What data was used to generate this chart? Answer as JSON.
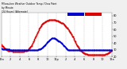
{
  "background_color": "#f0f0f0",
  "plot_bg_color": "#ffffff",
  "grid_color": "#aaaaaa",
  "temp_color": "#dd0000",
  "dew_color": "#0000cc",
  "tick_color": "#000000",
  "title_color": "#000000",
  "ylim": [
    20,
    85
  ],
  "xlim": [
    0,
    1440
  ],
  "yticks": [
    20,
    30,
    40,
    50,
    60,
    70,
    80
  ],
  "temp_data": [
    38,
    37,
    36,
    36,
    35,
    35,
    34,
    34,
    33,
    33,
    33,
    32,
    32,
    32,
    31,
    31,
    31,
    30,
    30,
    30,
    30,
    29,
    29,
    29,
    29,
    29,
    29,
    28,
    28,
    28,
    28,
    28,
    28,
    28,
    28,
    28,
    27,
    27,
    27,
    27,
    27,
    27,
    27,
    27,
    27,
    27,
    27,
    27,
    27,
    27,
    27,
    27,
    27,
    27,
    27,
    27,
    27,
    27,
    27,
    27,
    27,
    27,
    27,
    27,
    27,
    27,
    27,
    27,
    27,
    27,
    27,
    27,
    27,
    27,
    28,
    28,
    28,
    28,
    28,
    28,
    28,
    29,
    29,
    29,
    29,
    30,
    30,
    30,
    31,
    31,
    32,
    32,
    33,
    33,
    34,
    34,
    35,
    36,
    36,
    37,
    38,
    39,
    40,
    41,
    42,
    43,
    44,
    45,
    46,
    47,
    48,
    49,
    50,
    51,
    52,
    53,
    54,
    55,
    56,
    57,
    58,
    59,
    60,
    61,
    62,
    63,
    63,
    64,
    65,
    65,
    66,
    67,
    67,
    68,
    68,
    69,
    69,
    70,
    70,
    70,
    71,
    71,
    71,
    72,
    72,
    72,
    72,
    73,
    73,
    73,
    73,
    73,
    73,
    73,
    74,
    74,
    74,
    74,
    74,
    74,
    74,
    74,
    74,
    74,
    74,
    74,
    74,
    74,
    74,
    74,
    74,
    74,
    74,
    74,
    74,
    74,
    74,
    73,
    73,
    73,
    73,
    73,
    73,
    73,
    73,
    72,
    72,
    72,
    72,
    72,
    71,
    71,
    71,
    71,
    70,
    70,
    70,
    70,
    69,
    69,
    69,
    68,
    68,
    68,
    67,
    67,
    66,
    66,
    65,
    65,
    64,
    64,
    63,
    63,
    62,
    62,
    61,
    60,
    60,
    59,
    58,
    58,
    57,
    57,
    56,
    55,
    54,
    53,
    53,
    52,
    51,
    50,
    50,
    49,
    48,
    47,
    46,
    45,
    44,
    43,
    42,
    41,
    40,
    39,
    38,
    37,
    37,
    36,
    35,
    34,
    34,
    33,
    32,
    32,
    31,
    30,
    30,
    29,
    29,
    28,
    28,
    27,
    27,
    27,
    26,
    26,
    26,
    25,
    25,
    25,
    25,
    25,
    24,
    24,
    24,
    24,
    24,
    24,
    24,
    24,
    23,
    23,
    23,
    23,
    23,
    23,
    23,
    23,
    23,
    23,
    23,
    23,
    23,
    23,
    23,
    23,
    23,
    23,
    23,
    23,
    23,
    23,
    23,
    23,
    23,
    23,
    23,
    23,
    23,
    23,
    23,
    23,
    23,
    23,
    23,
    23,
    23,
    23,
    23,
    23,
    23,
    23,
    23,
    23,
    23,
    23,
    23,
    23,
    23,
    23,
    23,
    23,
    23,
    23,
    23,
    23,
    23,
    23,
    24,
    24,
    24,
    24,
    24,
    24,
    24,
    25,
    25,
    25,
    25,
    26,
    26,
    26,
    26,
    27,
    27,
    27,
    28,
    28,
    28,
    29
  ],
  "dew_data": [
    32,
    32,
    32,
    31,
    31,
    31,
    31,
    31,
    31,
    31,
    31,
    31,
    31,
    31,
    31,
    31,
    31,
    31,
    31,
    31,
    31,
    31,
    31,
    31,
    31,
    31,
    31,
    30,
    30,
    30,
    30,
    30,
    30,
    30,
    30,
    30,
    30,
    30,
    30,
    30,
    30,
    30,
    30,
    30,
    30,
    30,
    30,
    30,
    30,
    30,
    30,
    30,
    30,
    30,
    30,
    30,
    30,
    30,
    30,
    30,
    30,
    30,
    30,
    30,
    30,
    30,
    30,
    30,
    30,
    30,
    30,
    30,
    30,
    30,
    30,
    30,
    30,
    30,
    30,
    30,
    30,
    30,
    30,
    30,
    30,
    30,
    30,
    30,
    30,
    30,
    30,
    30,
    30,
    30,
    30,
    30,
    30,
    30,
    30,
    30,
    30,
    30,
    30,
    30,
    30,
    30,
    30,
    30,
    30,
    30,
    30,
    30,
    30,
    30,
    30,
    30,
    30,
    30,
    30,
    30,
    31,
    31,
    31,
    31,
    31,
    31,
    31,
    31,
    32,
    32,
    32,
    32,
    33,
    33,
    33,
    34,
    34,
    35,
    35,
    36,
    36,
    37,
    37,
    38,
    38,
    39,
    39,
    40,
    40,
    41,
    41,
    42,
    42,
    43,
    43,
    44,
    44,
    45,
    45,
    45,
    46,
    46,
    46,
    47,
    47,
    47,
    47,
    47,
    47,
    47,
    47,
    47,
    47,
    47,
    47,
    46,
    46,
    46,
    46,
    45,
    45,
    45,
    44,
    44,
    44,
    43,
    43,
    43,
    42,
    42,
    42,
    41,
    41,
    41,
    40,
    40,
    40,
    39,
    39,
    38,
    38,
    37,
    37,
    36,
    36,
    35,
    35,
    34,
    34,
    33,
    33,
    32,
    32,
    31,
    31,
    31,
    30,
    30,
    30,
    30,
    30,
    30,
    30,
    30,
    30,
    30,
    30,
    30,
    30,
    30,
    30,
    30,
    30,
    30,
    30,
    30,
    30,
    30,
    30,
    30,
    30,
    30,
    30,
    30,
    30,
    30,
    30,
    30,
    30,
    30,
    30,
    30,
    30,
    30,
    30,
    30,
    30,
    30,
    30,
    30,
    30,
    30,
    30,
    30,
    30,
    30,
    30,
    30,
    30,
    30,
    30,
    30,
    30,
    30,
    30,
    30,
    30,
    30,
    30,
    30,
    30,
    30,
    30,
    30,
    30,
    30,
    30,
    30,
    30,
    30,
    30,
    30,
    30,
    30,
    30,
    30,
    30,
    30,
    30,
    30,
    30,
    30,
    30,
    30,
    30,
    30,
    30,
    30,
    30,
    30,
    30,
    30,
    30,
    30,
    30,
    30,
    30,
    30,
    30,
    30,
    30,
    30,
    30,
    30,
    30,
    30,
    30,
    30,
    30,
    30,
    30,
    30,
    30,
    30,
    30,
    30,
    30,
    30,
    30,
    30,
    30,
    30,
    30,
    30,
    30,
    30,
    30,
    30,
    30,
    30,
    30,
    30,
    30,
    30,
    30,
    30,
    30,
    30,
    30,
    30
  ],
  "xtick_positions": [
    0,
    120,
    240,
    360,
    480,
    600,
    720,
    840,
    960,
    1080,
    1200,
    1320,
    1440
  ],
  "xtick_labels": [
    "12a",
    "2",
    "4",
    "6",
    "8",
    "10",
    "12p",
    "2",
    "4",
    "6",
    "8",
    "10",
    "12a"
  ],
  "marker_size": 0.4,
  "dot_size": 1.5
}
